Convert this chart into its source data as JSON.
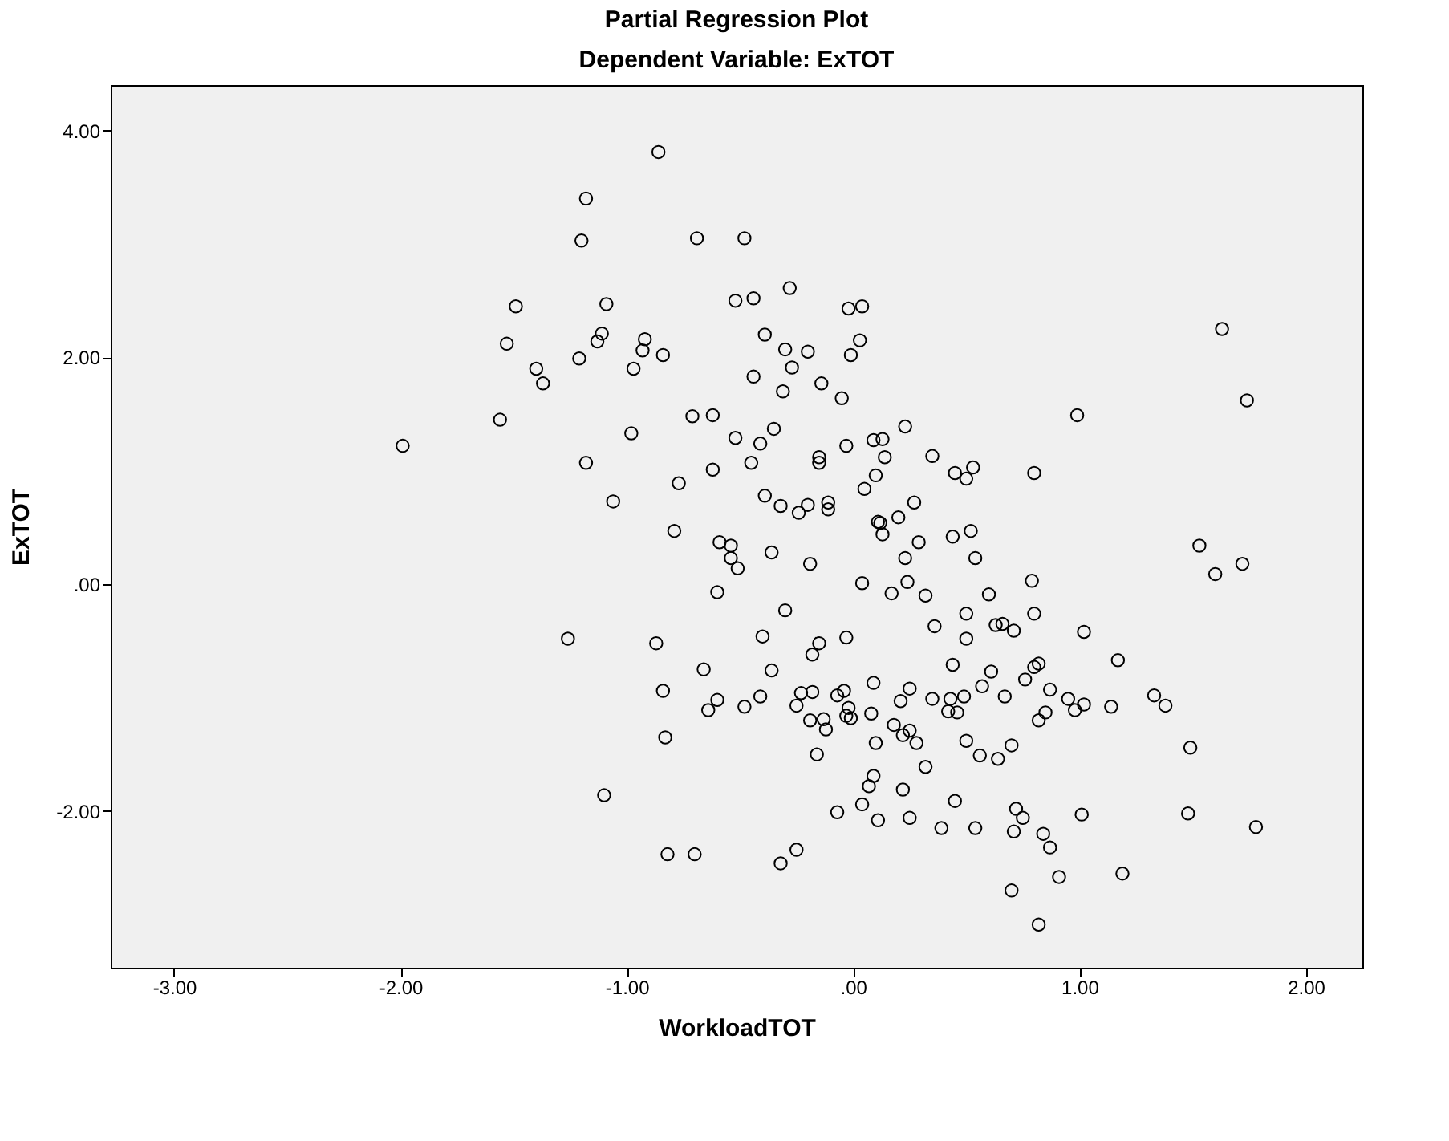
{
  "chart_data": {
    "type": "scatter",
    "title": "Partial Regression Plot",
    "subtitle": "Dependent Variable: ExTOT",
    "xlabel": "WorkloadTOT",
    "ylabel": "ExTOT",
    "marker": "circle",
    "grid": false,
    "xlim": [
      -3.28,
      2.25
    ],
    "ylim": [
      -3.38,
      4.4
    ],
    "xticks": [
      {
        "value": -3,
        "label": "-3.00"
      },
      {
        "value": -2,
        "label": "-2.00"
      },
      {
        "value": -1,
        "label": "-1.00"
      },
      {
        "value": 0,
        "label": ".00"
      },
      {
        "value": 1,
        "label": "1.00"
      },
      {
        "value": 2,
        "label": "2.00"
      }
    ],
    "yticks": [
      {
        "value": -2,
        "label": "-2.00"
      },
      {
        "value": 0,
        "label": ".00"
      },
      {
        "value": 2,
        "label": "2.00"
      },
      {
        "value": 4,
        "label": "4.00"
      }
    ],
    "series": [
      {
        "color": "#000000",
        "x": [
          -0.86,
          -1.18,
          -1.2,
          -0.69,
          -0.48,
          -1.49,
          -1.09,
          -0.52,
          -0.44,
          -0.28,
          -0.02,
          0.04,
          -1.53,
          -1.11,
          -1.13,
          -0.92,
          -0.93,
          -0.84,
          -0.39,
          -0.3,
          -0.2,
          0.03,
          -0.01,
          -1.4,
          -1.37,
          -1.21,
          -0.97,
          -0.27,
          -0.44,
          -0.31,
          -0.14,
          -0.05,
          -1.56,
          -1.99,
          -0.71,
          -0.62,
          -0.98,
          -0.52,
          -0.35,
          -0.41,
          -0.03,
          0.09,
          -1.18,
          -0.62,
          -0.45,
          -0.15,
          -0.15,
          -0.77,
          -1.06,
          -0.39,
          -0.32,
          -0.24,
          -0.2,
          -0.11,
          -0.11,
          0.05,
          -0.79,
          -0.59,
          -0.54,
          -0.36,
          1.63,
          1.74,
          0.99,
          0.23,
          0.13,
          0.14,
          0.35,
          0.45,
          0.53,
          0.5,
          0.8,
          0.1,
          0.27,
          0.2,
          0.12,
          0.13,
          0.11,
          0.29,
          0.44,
          0.52,
          1.53,
          -0.54,
          -0.51,
          -0.19,
          0.04,
          -0.6,
          -0.3,
          -0.4,
          -0.15,
          -0.18,
          -0.03,
          -1.26,
          -0.87,
          -0.66,
          -0.36,
          0.09,
          -0.84,
          -0.6,
          -0.64,
          -0.48,
          -0.41,
          -0.23,
          -0.18,
          -0.25,
          -0.07,
          -0.04,
          -0.02,
          -0.03,
          -0.01,
          -0.19,
          -0.13,
          -0.12,
          0.08,
          0.1,
          -0.83,
          -0.16,
          -1.1,
          0.09,
          0.07,
          0.04,
          -0.07,
          0.11,
          -0.82,
          -0.7,
          -0.25,
          -0.32,
          1.6,
          1.72,
          0.23,
          0.54,
          0.24,
          0.17,
          0.32,
          0.6,
          0.79,
          0.5,
          0.8,
          0.36,
          0.5,
          0.63,
          0.66,
          0.71,
          1.02,
          1.17,
          0.44,
          0.61,
          0.57,
          0.76,
          0.8,
          0.82,
          0.25,
          0.21,
          0.35,
          0.43,
          0.49,
          0.42,
          0.46,
          0.67,
          0.87,
          0.95,
          1.02,
          0.98,
          1.14,
          1.33,
          1.38,
          0.85,
          0.82,
          0.18,
          0.22,
          0.25,
          0.28,
          0.5,
          0.56,
          0.64,
          0.7,
          0.32,
          1.49,
          0.22,
          0.45,
          0.25,
          0.39,
          0.54,
          0.72,
          0.75,
          0.71,
          1.01,
          1.48,
          1.78,
          0.84,
          0.87,
          0.91,
          1.19,
          0.7,
          0.82
        ],
        "values": [
          3.81,
          3.4,
          3.03,
          3.05,
          3.05,
          2.45,
          2.47,
          2.5,
          2.52,
          2.61,
          2.43,
          2.45,
          2.12,
          2.21,
          2.14,
          2.16,
          2.06,
          2.02,
          2.2,
          2.07,
          2.05,
          2.15,
          2.02,
          1.9,
          1.77,
          1.99,
          1.9,
          1.91,
          1.83,
          1.7,
          1.77,
          1.64,
          1.45,
          1.22,
          1.48,
          1.49,
          1.33,
          1.29,
          1.37,
          1.24,
          1.22,
          1.27,
          1.07,
          1.01,
          1.07,
          1.12,
          1.07,
          0.89,
          0.73,
          0.78,
          0.69,
          0.63,
          0.7,
          0.72,
          0.66,
          0.84,
          0.47,
          0.37,
          0.34,
          0.28,
          2.25,
          1.62,
          1.49,
          1.39,
          1.28,
          1.12,
          1.13,
          0.98,
          1.03,
          0.93,
          0.98,
          0.96,
          0.72,
          0.59,
          0.54,
          0.44,
          0.55,
          0.37,
          0.42,
          0.47,
          0.34,
          0.23,
          0.14,
          0.18,
          0.01,
          -0.07,
          -0.23,
          -0.46,
          -0.52,
          -0.62,
          -0.47,
          -0.48,
          -0.52,
          -0.75,
          -0.76,
          -0.87,
          -0.94,
          -1.02,
          -1.11,
          -1.08,
          -0.99,
          -0.96,
          -0.95,
          -1.07,
          -0.98,
          -0.94,
          -1.09,
          -1.16,
          -1.18,
          -1.2,
          -1.19,
          -1.28,
          -1.14,
          -1.4,
          -1.35,
          -1.5,
          -1.86,
          -1.69,
          -1.78,
          -1.94,
          -2.01,
          -2.08,
          -2.38,
          -2.38,
          -2.34,
          -2.46,
          0.09,
          0.18,
          0.23,
          0.23,
          0.02,
          -0.08,
          -0.1,
          -0.09,
          0.03,
          -0.26,
          -0.26,
          -0.37,
          -0.48,
          -0.36,
          -0.35,
          -0.41,
          -0.42,
          -0.67,
          -0.71,
          -0.77,
          -0.9,
          -0.84,
          -0.73,
          -0.7,
          -0.92,
          -1.03,
          -1.01,
          -1.01,
          -0.99,
          -1.12,
          -1.13,
          -0.99,
          -0.93,
          -1.01,
          -1.06,
          -1.11,
          -1.08,
          -0.98,
          -1.07,
          -1.13,
          -1.2,
          -1.24,
          -1.33,
          -1.29,
          -1.4,
          -1.38,
          -1.51,
          -1.54,
          -1.42,
          -1.61,
          -1.44,
          -1.81,
          -1.91,
          -2.06,
          -2.15,
          -2.15,
          -1.98,
          -2.06,
          -2.18,
          -2.03,
          -2.02,
          -2.14,
          -2.2,
          -2.32,
          -2.58,
          -2.55,
          -2.7,
          -3.0
        ]
      }
    ]
  }
}
